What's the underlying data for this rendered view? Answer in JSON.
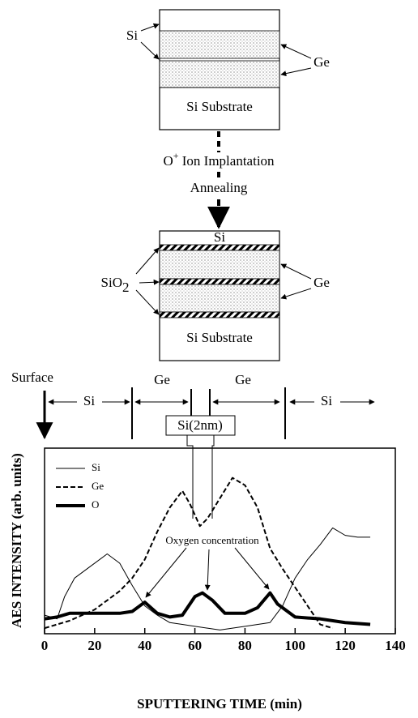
{
  "diagram": {
    "before": {
      "si_label": "Si",
      "ge_label": "Ge",
      "substrate": "Si Substrate"
    },
    "process": {
      "ion": "O",
      "charge": "+",
      "implantation": " Ion Implantation",
      "annealing": "Annealing"
    },
    "after": {
      "si_top": "Si",
      "oxide": "SiO",
      "oxide_subscript": "2",
      "ge_label": "Ge",
      "substrate": "Si Substrate"
    }
  },
  "regions": {
    "surface": "Surface",
    "si_left": "Si",
    "ge_left": "Ge",
    "ge_right": "Ge",
    "si_right": "Si",
    "spacer": "Si(2nm)"
  },
  "chart_data": {
    "type": "line",
    "xlabel": "SPUTTERING TIME (min)",
    "ylabel": "AES INTENSITY (arb. units)",
    "annotation": "Oxygen concentration",
    "xlim": [
      0,
      140
    ],
    "xticks": [
      0,
      20,
      40,
      60,
      80,
      100,
      120,
      140
    ],
    "ylim": [
      0,
      10
    ],
    "legend": "upper left",
    "series": [
      {
        "name": "Si",
        "color": "#000000",
        "line_style": "solid",
        "line_width": 1,
        "x": [
          0,
          5,
          8,
          12,
          18,
          25,
          30,
          35,
          40,
          45,
          50,
          55,
          60,
          65,
          70,
          80,
          90,
          95,
          100,
          105,
          110,
          115,
          120,
          125,
          130
        ],
        "values": [
          1.0,
          0.8,
          2.0,
          3.0,
          3.6,
          4.3,
          3.8,
          2.6,
          1.5,
          1.0,
          0.6,
          0.5,
          0.4,
          0.3,
          0.2,
          0.4,
          0.6,
          1.5,
          3.0,
          4.0,
          4.8,
          5.7,
          5.3,
          5.2,
          5.2
        ]
      },
      {
        "name": "Ge",
        "color": "#000000",
        "line_style": "dashed",
        "line_width": 2,
        "x": [
          0,
          5,
          10,
          15,
          20,
          25,
          30,
          35,
          40,
          45,
          50,
          55,
          58,
          62,
          65,
          70,
          75,
          80,
          85,
          90,
          95,
          100,
          105,
          110,
          115
        ],
        "values": [
          0.3,
          0.5,
          0.7,
          1.0,
          1.3,
          1.8,
          2.3,
          3.0,
          4.0,
          5.5,
          6.8,
          7.7,
          7.0,
          5.8,
          6.2,
          7.3,
          8.4,
          8.0,
          6.8,
          4.6,
          3.5,
          2.5,
          1.5,
          0.5,
          0.3
        ]
      },
      {
        "name": "O",
        "color": "#000000",
        "line_style": "solid",
        "line_width": 4,
        "x": [
          0,
          5,
          10,
          20,
          30,
          35,
          40,
          45,
          50,
          55,
          60,
          63,
          67,
          72,
          80,
          85,
          90,
          93,
          100,
          110,
          120,
          130
        ],
        "values": [
          0.8,
          0.9,
          1.1,
          1.1,
          1.1,
          1.2,
          1.7,
          1.1,
          0.9,
          1.0,
          2.0,
          2.2,
          1.8,
          1.1,
          1.1,
          1.4,
          2.2,
          1.6,
          0.9,
          0.8,
          0.6,
          0.5
        ]
      }
    ]
  }
}
